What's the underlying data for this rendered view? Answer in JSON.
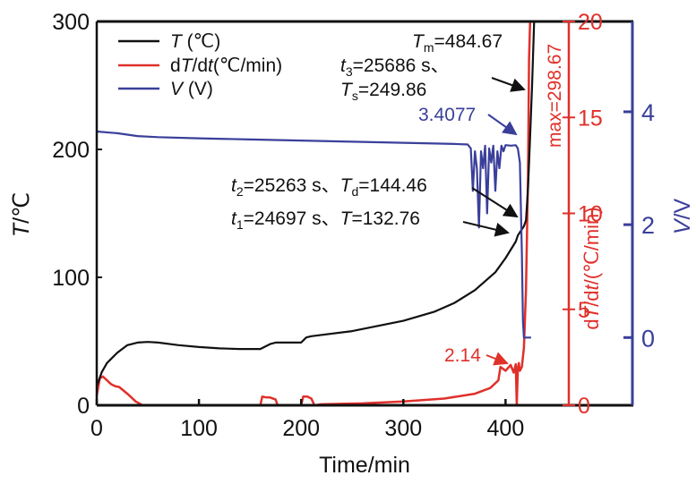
{
  "chart_data": {
    "type": "line",
    "title": "",
    "xlabel": "Time/min",
    "ylabel": "T/℃",
    "y2label": "dT/dt/(℃/min)",
    "y3label": "V/V",
    "xlim": [
      0,
      525
    ],
    "ylim": [
      0,
      300
    ],
    "y2lim": [
      0,
      20
    ],
    "y3lim": [
      -1.2,
      5.6
    ],
    "x_ticks": [
      "0",
      "100",
      "200",
      "300",
      "400"
    ],
    "x_tick_values": [
      0,
      100,
      200,
      300,
      400
    ],
    "y_ticks": [
      "0",
      "100",
      "200",
      "300"
    ],
    "y_tick_values": [
      0,
      100,
      200,
      300
    ],
    "y2_ticks": [
      "0",
      "5",
      "10",
      "15",
      "20"
    ],
    "y2_tick_values": [
      0,
      5,
      10,
      15,
      20
    ],
    "y3_ticks": [
      "0",
      "2",
      "4"
    ],
    "y3_tick_values": [
      0,
      2,
      4
    ],
    "colors": {
      "T": "#111111",
      "dTdt": "#e0302a",
      "V": "#3a3f9a"
    },
    "legend": {
      "placement": "top-left",
      "entries": [
        {
          "name": "T",
          "label_italic": "T",
          "label_rest": " (℃)"
        },
        {
          "name": "dTdt",
          "label_pre": "d",
          "label_italic": "T",
          "label_mid": "/d",
          "label_italic2": "t",
          "label_rest": "(℃/min)"
        },
        {
          "name": "V",
          "label_italic": "V",
          "label_rest": " (V)"
        }
      ]
    },
    "series": [
      {
        "name": "T (℃)",
        "axis": "left",
        "x": [
          0,
          5,
          10,
          20,
          30,
          40,
          50,
          60,
          80,
          100,
          120,
          140,
          160,
          170,
          175,
          190,
          200,
          205,
          210,
          250,
          300,
          330,
          350,
          370,
          390,
          400,
          410,
          412,
          418,
          420,
          422,
          424,
          426,
          428
        ],
        "y": [
          15,
          26,
          33,
          41,
          47,
          49,
          49.5,
          49,
          47,
          45.5,
          44.5,
          44,
          44,
          48,
          49,
          49,
          49,
          53,
          54,
          58,
          66,
          73,
          80,
          90,
          104,
          115,
          128,
          132.76,
          140,
          144.46,
          170,
          210,
          249.86,
          300
        ]
      },
      {
        "name": "dT/dt (℃/min)",
        "axis": "right",
        "x": [
          0,
          3,
          6,
          10,
          14,
          18,
          22,
          30,
          38,
          45,
          50,
          160,
          162,
          165,
          170,
          175,
          177,
          200,
          202,
          206,
          210,
          213,
          220,
          260,
          300,
          340,
          370,
          385,
          393,
          395,
          400,
          405,
          408,
          410,
          411,
          412,
          413,
          414,
          416,
          418,
          420,
          422,
          423,
          424
        ],
        "y": [
          0.5,
          1.4,
          1.5,
          1.3,
          1.1,
          1.0,
          0.95,
          0.6,
          0.2,
          0.0,
          0.0,
          0.0,
          0.45,
          0.42,
          0.4,
          0.3,
          0.0,
          0.0,
          0.45,
          0.45,
          0.35,
          0.0,
          0.05,
          0.1,
          0.2,
          0.35,
          0.6,
          0.9,
          1.3,
          2.0,
          1.8,
          2.1,
          1.7,
          2.14,
          0.0,
          1.9,
          2.2,
          1.8,
          2.0,
          3.0,
          6.0,
          12.0,
          18.0,
          20.0
        ]
      },
      {
        "name": "V (V)",
        "axis": "far-right",
        "x": [
          0,
          20,
          40,
          60,
          100,
          150,
          200,
          250,
          300,
          350,
          363,
          366,
          368,
          370,
          372,
          374,
          376,
          378,
          380,
          382,
          384,
          386,
          388,
          390,
          392,
          394,
          396,
          398,
          400,
          405,
          410,
          412,
          414,
          416,
          417,
          418,
          419,
          425
        ],
        "y": [
          3.65,
          3.62,
          3.57,
          3.55,
          3.53,
          3.51,
          3.49,
          3.47,
          3.45,
          3.43,
          3.42,
          3.35,
          2.6,
          3.3,
          3.0,
          1.95,
          3.3,
          3.0,
          3.4,
          2.2,
          3.35,
          3.1,
          3.4,
          2.6,
          3.3,
          3.0,
          3.4,
          3.3,
          3.41,
          3.4,
          3.4077,
          3.35,
          3.1,
          1.5,
          0.3,
          0.0,
          0.0,
          0.0
        ]
      }
    ],
    "annotations": [
      {
        "id": "tm",
        "text_italic": "T",
        "text_sub": "m",
        "text_rest": "=484.67",
        "color": "#111111"
      },
      {
        "id": "t3",
        "text_italic": "t",
        "text_sub": "3",
        "text_rest": "=25686 s、",
        "color": "#111111"
      },
      {
        "id": "ts",
        "text_italic": "T",
        "text_sub": "s",
        "text_rest": "=249.86",
        "color": "#111111"
      },
      {
        "id": "v-peak",
        "text": "3.4077",
        "color": "#3a3f9a"
      },
      {
        "id": "t2",
        "text_italic": "t",
        "text_sub": "2",
        "text_rest": "=25263 s、",
        "text_italic2": "T",
        "text_sub2": "d",
        "text_rest2": "=144.46",
        "color": "#111111"
      },
      {
        "id": "t1",
        "text_italic": "t",
        "text_sub": "1",
        "text_rest": "=24697 s、",
        "text_italic2": "T",
        "text_rest2": "=132.76",
        "color": "#111111"
      },
      {
        "id": "rate-peak",
        "text": "2.14",
        "color": "#e0302a"
      },
      {
        "id": "rate-max",
        "text": "max=298.67",
        "color": "#e0302a"
      }
    ]
  }
}
